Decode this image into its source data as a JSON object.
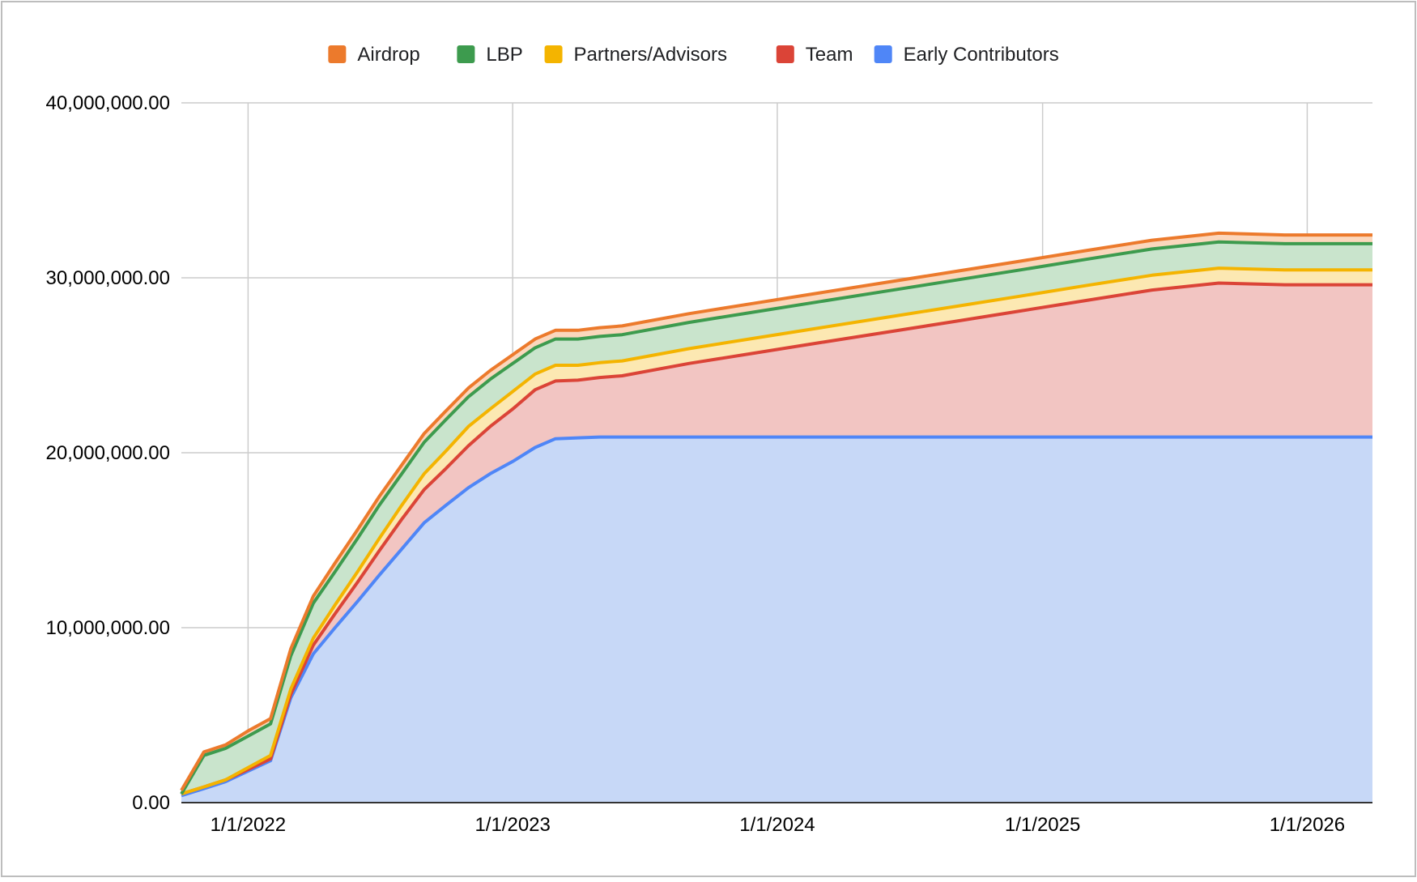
{
  "chart_data": {
    "type": "area",
    "stacked": true,
    "title": "",
    "xlabel": "",
    "ylabel": "",
    "grid": true,
    "legend_position": "top",
    "ylim": [
      0,
      40000000
    ],
    "xlim": [
      "2021-10-01",
      "2026-04-01"
    ],
    "y_ticks": [
      0,
      10000000,
      20000000,
      30000000,
      40000000
    ],
    "y_tick_labels": [
      "0.00",
      "10,000,000.00",
      "20,000,000.00",
      "30,000,000.00",
      "40,000,000.00"
    ],
    "x_ticks": [
      "2022-01-01",
      "2023-01-01",
      "2024-01-01",
      "2025-01-01",
      "2026-01-01"
    ],
    "x_tick_labels": [
      "1/1/2022",
      "1/1/2023",
      "1/1/2024",
      "1/1/2025",
      "1/1/2026"
    ],
    "legend": [
      "Airdrop",
      "LBP",
      "Partners/Advisors",
      "Team",
      "Early Contributors"
    ],
    "x": [
      "2021-10-01",
      "2021-11-01",
      "2021-12-01",
      "2022-01-01",
      "2022-02-01",
      "2022-03-01",
      "2022-04-01",
      "2022-05-01",
      "2022-06-01",
      "2022-07-01",
      "2022-08-01",
      "2022-09-01",
      "2022-10-01",
      "2022-11-01",
      "2022-12-01",
      "2023-01-01",
      "2023-02-01",
      "2023-03-01",
      "2023-04-01",
      "2023-05-01",
      "2023-06-01",
      "2023-09-01",
      "2023-12-01",
      "2024-03-01",
      "2024-06-01",
      "2024-09-01",
      "2024-12-01",
      "2025-03-01",
      "2025-06-01",
      "2025-09-01",
      "2025-12-01",
      "2026-01-01",
      "2026-04-01"
    ],
    "series": [
      {
        "name": "Early Contributors",
        "color": "#4f86f7",
        "fill": "#c7d8f7",
        "values": [
          400000,
          800000,
          1200000,
          1800000,
          2400000,
          6000000,
          8500000,
          10000000,
          11500000,
          13000000,
          14500000,
          16000000,
          17000000,
          18000000,
          18800000,
          19500000,
          20300000,
          20800000,
          20850000,
          20900000,
          20900000,
          20900000,
          20900000,
          20900000,
          20900000,
          20900000,
          20900000,
          20900000,
          20900000,
          20900000,
          20900000,
          20900000,
          20900000
        ]
      },
      {
        "name": "Team",
        "color": "#db4437",
        "fill": "#f2c5c2",
        "values": [
          100000,
          100000,
          100000,
          100000,
          100000,
          200000,
          500000,
          800000,
          1100000,
          1400000,
          1700000,
          1900000,
          2100000,
          2400000,
          2700000,
          3000000,
          3300000,
          3300000,
          3300000,
          3400000,
          3500000,
          4200000,
          4800000,
          5400000,
          6000000,
          6600000,
          7200000,
          7800000,
          8400000,
          8800000,
          8700000,
          8700000,
          8700000
        ]
      },
      {
        "name": "Partners/Advisors",
        "color": "#f4b400",
        "fill": "#fce8b2",
        "values": [
          0,
          0,
          0,
          100000,
          200000,
          300000,
          400000,
          500000,
          600000,
          700000,
          800000,
          900000,
          1000000,
          1100000,
          1000000,
          1000000,
          900000,
          900000,
          850000,
          850000,
          850000,
          850000,
          850000,
          850000,
          850000,
          850000,
          850000,
          850000,
          850000,
          850000,
          850000,
          850000,
          850000
        ]
      },
      {
        "name": "LBP",
        "color": "#3d9b4e",
        "fill": "#c9e4cc",
        "values": [
          0,
          1800000,
          1800000,
          1800000,
          1800000,
          1900000,
          2000000,
          1900000,
          1900000,
          1900000,
          1800000,
          1800000,
          1800000,
          1700000,
          1700000,
          1600000,
          1500000,
          1500000,
          1500000,
          1500000,
          1500000,
          1500000,
          1500000,
          1500000,
          1500000,
          1500000,
          1500000,
          1500000,
          1500000,
          1500000,
          1500000,
          1500000,
          1500000
        ]
      },
      {
        "name": "Airdrop",
        "color": "#ec7a2c",
        "fill": "#fbd7bd",
        "values": [
          200000,
          200000,
          200000,
          300000,
          300000,
          400000,
          400000,
          500000,
          500000,
          500000,
          500000,
          500000,
          500000,
          500000,
          500000,
          500000,
          500000,
          500000,
          500000,
          500000,
          500000,
          500000,
          500000,
          500000,
          500000,
          500000,
          500000,
          500000,
          500000,
          500000,
          500000,
          500000,
          500000
        ]
      }
    ]
  }
}
